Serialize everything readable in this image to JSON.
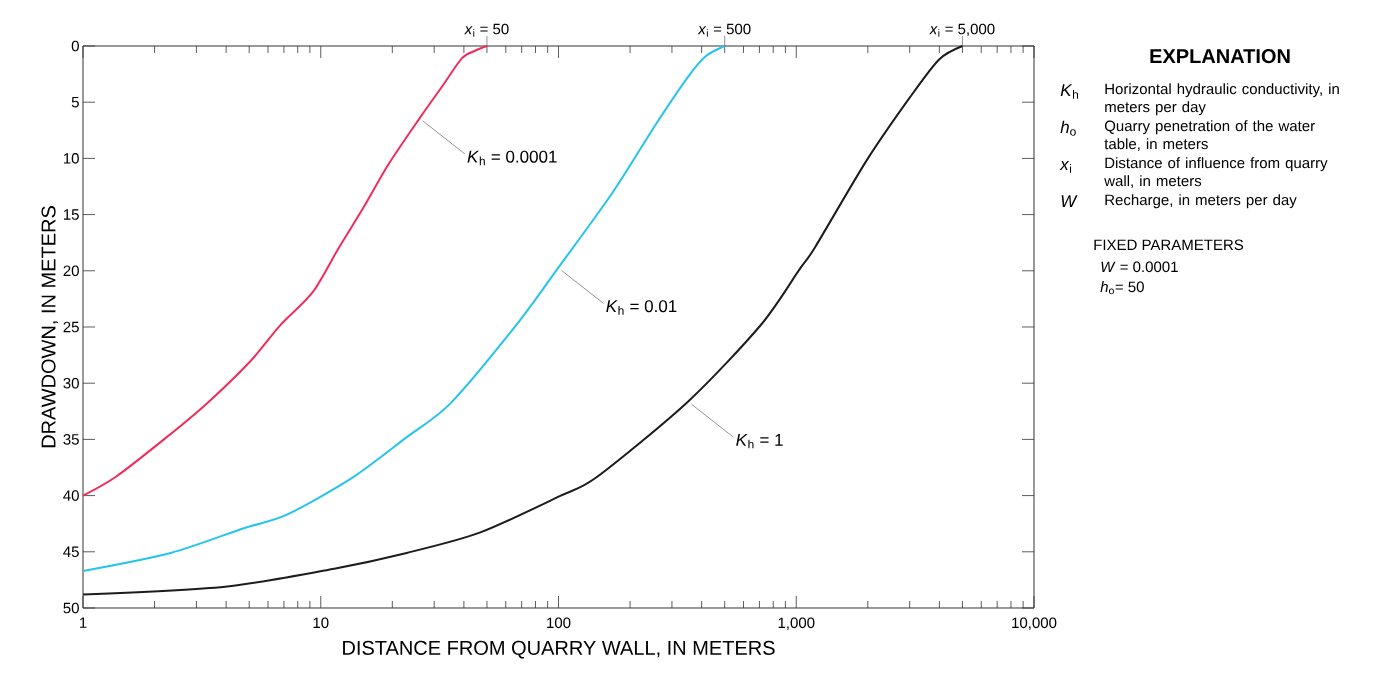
{
  "chart_data": {
    "type": "line",
    "xlabel": "DISTANCE FROM QUARRY WALL, IN METERS",
    "ylabel": "DRAWDOWN, IN METERS",
    "log": "x",
    "xlim": [
      1,
      10000
    ],
    "ylim": [
      50,
      0
    ],
    "xticks": [
      1,
      10,
      100,
      {
        "value": 1000,
        "label": "1,000"
      },
      {
        "value": 10000,
        "label": "10,000"
      }
    ],
    "yticks": [
      0,
      5,
      10,
      15,
      20,
      25,
      30,
      35,
      40,
      45,
      50
    ],
    "grid": false,
    "marker": "none",
    "line_style": "solid",
    "series": [
      {
        "color": "#ef2d5b",
        "x": [
          1,
          1.38,
          2.25,
          3.32,
          5.08,
          6.72,
          9.25,
          11.8,
          15.1,
          19.3,
          26.1,
          32.9,
          39.2,
          44.8,
          50
        ],
        "values": [
          40,
          38.3,
          34.8,
          31.8,
          28.0,
          24.9,
          21.9,
          18.1,
          14.4,
          10.5,
          6.4,
          3.4,
          1.1,
          0.4,
          0
        ]
      },
      {
        "color": "#26c3ee",
        "x": [
          1,
          2.34,
          4.75,
          7.2,
          13.6,
          23,
          35.1,
          66,
          100,
          168,
          256,
          352,
          417,
          500
        ],
        "values": [
          46.7,
          45.1,
          42.9,
          41.7,
          38.4,
          34.8,
          31.8,
          24.9,
          19.7,
          13.1,
          7.0,
          2.7,
          0.9,
          0
        ]
      },
      {
        "color": "#1c1c1c",
        "x": [
          1,
          3.96,
          11.4,
          23,
          46.6,
          100,
          146,
          352,
          711,
          1030,
          1200,
          1975,
          3000,
          3990,
          5000
        ],
        "values": [
          48.8,
          48.1,
          46.5,
          45.1,
          43.3,
          40.1,
          38.3,
          31.6,
          24.8,
          19.9,
          17.9,
          10.2,
          4.6,
          1.2,
          0
        ]
      }
    ],
    "annotations": [
      {
        "text": "*x*$_{i}$ = 50",
        "x": 50,
        "y": 0
      },
      {
        "text": "*x*$_{i}$ = 500",
        "x": 500,
        "y": 0
      },
      {
        "text": "*x*$_{i}$ = 5,000",
        "x": 5000,
        "y": 0
      },
      {
        "text": "*K*$_{h}$ = 0.0001",
        "x": 26.1,
        "y": 6.4
      },
      {
        "text": "*K*$_{h}$ = 0.01",
        "x": 100,
        "y": 19.7
      },
      {
        "text": "*K*$_{h}$ = 1",
        "x": 352,
        "y": 31.6
      },
      "**EXPLANATION**",
      "*K*$_{h}$",
      "Horizontal hydraulic conductivity, in meters per day",
      "*h*$_{o}$",
      "Quarry penetration of the water table, in meters",
      "*x*$_{i}$",
      "Distance of influence from quarry wall, in meters",
      "*W*",
      "Recharge, in meters per day",
      "FIXED PARAMETERS",
      "*W* = 0.0001",
      "*h*$_{o}$= 50"
    ]
  }
}
